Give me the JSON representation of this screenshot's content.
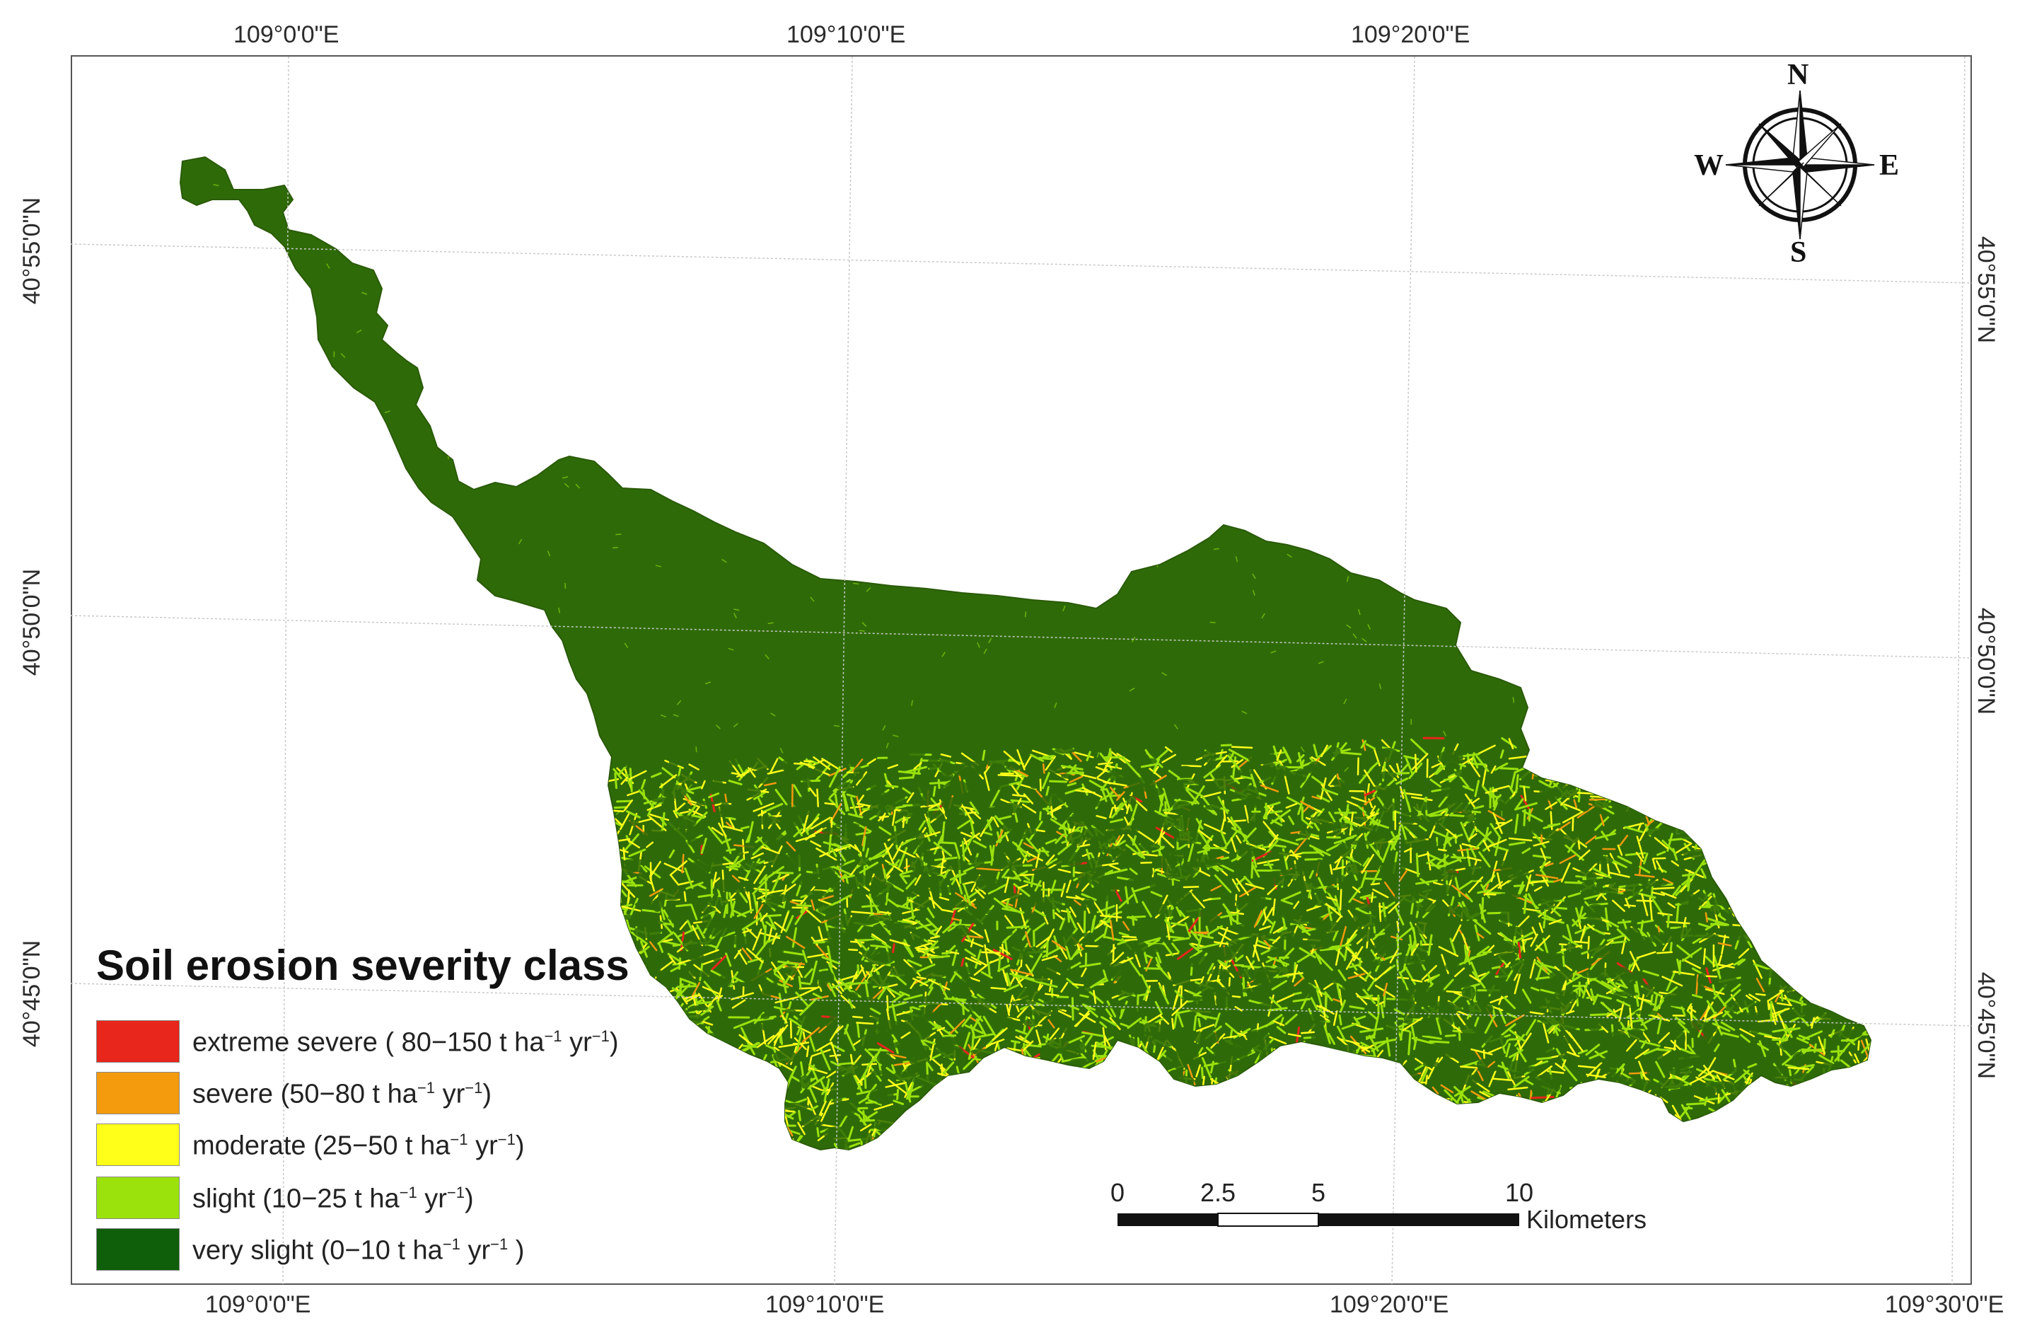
{
  "map": {
    "legend": {
      "title": "Soil erosion severity class",
      "items": [
        {
          "name": "extreme severe",
          "prefix": "extreme severe ( 80−150 t ha",
          "color": "#e8261c"
        },
        {
          "name": "severe",
          "prefix": "severe (50−80 t ha",
          "color": "#f39a0d"
        },
        {
          "name": "moderate",
          "prefix": "moderate (25−50 t ha",
          "color": "#ffff1a"
        },
        {
          "name": "slight",
          "prefix": "slight (10−25 t ha",
          "color": "#9be20d"
        },
        {
          "name": "very slight",
          "prefix": "very slight (0−10 t ha",
          "color": "#0f5e0a"
        }
      ],
      "exp_ha": "−1",
      "mid_yr": " yr",
      "exp_yr": "−1",
      "suffix_plain": ")",
      "suffix_last": " )"
    },
    "graticule": {
      "top_lon": [
        "109°0'0\"E",
        "109°10'0\"E",
        "109°20'0\"E"
      ],
      "bottom_lon": [
        "109°0'0\"E",
        "109°10'0\"E",
        "109°20'0\"E",
        "109°30'0\"E"
      ],
      "left_lat": [
        "40°55'0\"N",
        "40°50'0\"N",
        "40°45'0\"N"
      ],
      "right_lat": [
        "40°55'0\"N",
        "40°50'0\"N",
        "40°45'0\"N"
      ]
    },
    "scale_bar": {
      "labels": [
        "0",
        "2.5",
        "5",
        "10"
      ],
      "values": [
        0,
        2.5,
        5,
        10
      ],
      "units": "Kilometers"
    },
    "compass": {
      "n": "N",
      "s": "S",
      "e": "E",
      "w": "W"
    },
    "colors": {
      "basin_dark": "#2e6b08",
      "slight": "#9be20d",
      "moderate": "#ffff1a",
      "severe": "#f39a0d",
      "extreme": "#e8261c"
    }
  }
}
